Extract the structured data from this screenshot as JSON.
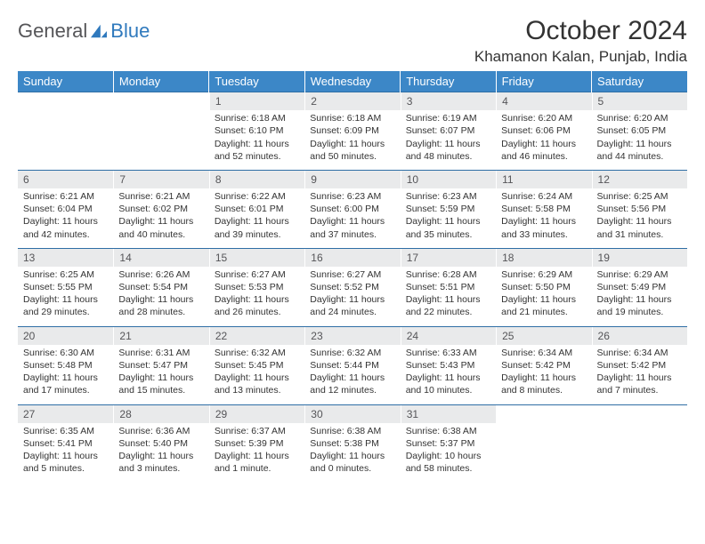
{
  "brand": {
    "part1": "General",
    "part2": "Blue"
  },
  "title": "October 2024",
  "location": "Khamanon Kalan, Punjab, India",
  "colors": {
    "header_bg": "#3c87c7",
    "daynum_bg": "#e9eaeb",
    "row_border": "#2f6ea5",
    "brand_blue": "#2f79bd",
    "text": "#333333"
  },
  "weekdays": [
    "Sunday",
    "Monday",
    "Tuesday",
    "Wednesday",
    "Thursday",
    "Friday",
    "Saturday"
  ],
  "weeks": [
    [
      null,
      null,
      {
        "n": "1",
        "sr": "Sunrise: 6:18 AM",
        "ss": "Sunset: 6:10 PM",
        "d1": "Daylight: 11 hours",
        "d2": "and 52 minutes."
      },
      {
        "n": "2",
        "sr": "Sunrise: 6:18 AM",
        "ss": "Sunset: 6:09 PM",
        "d1": "Daylight: 11 hours",
        "d2": "and 50 minutes."
      },
      {
        "n": "3",
        "sr": "Sunrise: 6:19 AM",
        "ss": "Sunset: 6:07 PM",
        "d1": "Daylight: 11 hours",
        "d2": "and 48 minutes."
      },
      {
        "n": "4",
        "sr": "Sunrise: 6:20 AM",
        "ss": "Sunset: 6:06 PM",
        "d1": "Daylight: 11 hours",
        "d2": "and 46 minutes."
      },
      {
        "n": "5",
        "sr": "Sunrise: 6:20 AM",
        "ss": "Sunset: 6:05 PM",
        "d1": "Daylight: 11 hours",
        "d2": "and 44 minutes."
      }
    ],
    [
      {
        "n": "6",
        "sr": "Sunrise: 6:21 AM",
        "ss": "Sunset: 6:04 PM",
        "d1": "Daylight: 11 hours",
        "d2": "and 42 minutes."
      },
      {
        "n": "7",
        "sr": "Sunrise: 6:21 AM",
        "ss": "Sunset: 6:02 PM",
        "d1": "Daylight: 11 hours",
        "d2": "and 40 minutes."
      },
      {
        "n": "8",
        "sr": "Sunrise: 6:22 AM",
        "ss": "Sunset: 6:01 PM",
        "d1": "Daylight: 11 hours",
        "d2": "and 39 minutes."
      },
      {
        "n": "9",
        "sr": "Sunrise: 6:23 AM",
        "ss": "Sunset: 6:00 PM",
        "d1": "Daylight: 11 hours",
        "d2": "and 37 minutes."
      },
      {
        "n": "10",
        "sr": "Sunrise: 6:23 AM",
        "ss": "Sunset: 5:59 PM",
        "d1": "Daylight: 11 hours",
        "d2": "and 35 minutes."
      },
      {
        "n": "11",
        "sr": "Sunrise: 6:24 AM",
        "ss": "Sunset: 5:58 PM",
        "d1": "Daylight: 11 hours",
        "d2": "and 33 minutes."
      },
      {
        "n": "12",
        "sr": "Sunrise: 6:25 AM",
        "ss": "Sunset: 5:56 PM",
        "d1": "Daylight: 11 hours",
        "d2": "and 31 minutes."
      }
    ],
    [
      {
        "n": "13",
        "sr": "Sunrise: 6:25 AM",
        "ss": "Sunset: 5:55 PM",
        "d1": "Daylight: 11 hours",
        "d2": "and 29 minutes."
      },
      {
        "n": "14",
        "sr": "Sunrise: 6:26 AM",
        "ss": "Sunset: 5:54 PM",
        "d1": "Daylight: 11 hours",
        "d2": "and 28 minutes."
      },
      {
        "n": "15",
        "sr": "Sunrise: 6:27 AM",
        "ss": "Sunset: 5:53 PM",
        "d1": "Daylight: 11 hours",
        "d2": "and 26 minutes."
      },
      {
        "n": "16",
        "sr": "Sunrise: 6:27 AM",
        "ss": "Sunset: 5:52 PM",
        "d1": "Daylight: 11 hours",
        "d2": "and 24 minutes."
      },
      {
        "n": "17",
        "sr": "Sunrise: 6:28 AM",
        "ss": "Sunset: 5:51 PM",
        "d1": "Daylight: 11 hours",
        "d2": "and 22 minutes."
      },
      {
        "n": "18",
        "sr": "Sunrise: 6:29 AM",
        "ss": "Sunset: 5:50 PM",
        "d1": "Daylight: 11 hours",
        "d2": "and 21 minutes."
      },
      {
        "n": "19",
        "sr": "Sunrise: 6:29 AM",
        "ss": "Sunset: 5:49 PM",
        "d1": "Daylight: 11 hours",
        "d2": "and 19 minutes."
      }
    ],
    [
      {
        "n": "20",
        "sr": "Sunrise: 6:30 AM",
        "ss": "Sunset: 5:48 PM",
        "d1": "Daylight: 11 hours",
        "d2": "and 17 minutes."
      },
      {
        "n": "21",
        "sr": "Sunrise: 6:31 AM",
        "ss": "Sunset: 5:47 PM",
        "d1": "Daylight: 11 hours",
        "d2": "and 15 minutes."
      },
      {
        "n": "22",
        "sr": "Sunrise: 6:32 AM",
        "ss": "Sunset: 5:45 PM",
        "d1": "Daylight: 11 hours",
        "d2": "and 13 minutes."
      },
      {
        "n": "23",
        "sr": "Sunrise: 6:32 AM",
        "ss": "Sunset: 5:44 PM",
        "d1": "Daylight: 11 hours",
        "d2": "and 12 minutes."
      },
      {
        "n": "24",
        "sr": "Sunrise: 6:33 AM",
        "ss": "Sunset: 5:43 PM",
        "d1": "Daylight: 11 hours",
        "d2": "and 10 minutes."
      },
      {
        "n": "25",
        "sr": "Sunrise: 6:34 AM",
        "ss": "Sunset: 5:42 PM",
        "d1": "Daylight: 11 hours",
        "d2": "and 8 minutes."
      },
      {
        "n": "26",
        "sr": "Sunrise: 6:34 AM",
        "ss": "Sunset: 5:42 PM",
        "d1": "Daylight: 11 hours",
        "d2": "and 7 minutes."
      }
    ],
    [
      {
        "n": "27",
        "sr": "Sunrise: 6:35 AM",
        "ss": "Sunset: 5:41 PM",
        "d1": "Daylight: 11 hours",
        "d2": "and 5 minutes."
      },
      {
        "n": "28",
        "sr": "Sunrise: 6:36 AM",
        "ss": "Sunset: 5:40 PM",
        "d1": "Daylight: 11 hours",
        "d2": "and 3 minutes."
      },
      {
        "n": "29",
        "sr": "Sunrise: 6:37 AM",
        "ss": "Sunset: 5:39 PM",
        "d1": "Daylight: 11 hours",
        "d2": "and 1 minute."
      },
      {
        "n": "30",
        "sr": "Sunrise: 6:38 AM",
        "ss": "Sunset: 5:38 PM",
        "d1": "Daylight: 11 hours",
        "d2": "and 0 minutes."
      },
      {
        "n": "31",
        "sr": "Sunrise: 6:38 AM",
        "ss": "Sunset: 5:37 PM",
        "d1": "Daylight: 10 hours",
        "d2": "and 58 minutes."
      },
      null,
      null
    ]
  ]
}
